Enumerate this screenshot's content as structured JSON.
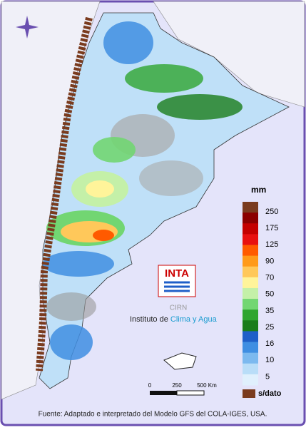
{
  "legend": {
    "title": "mm",
    "labels": [
      "250",
      "175",
      "125",
      "90",
      "70",
      "50",
      "35",
      "25",
      "16",
      "10",
      "5",
      "s/dato"
    ],
    "colors": [
      "#7a3b1e",
      "#8b0000",
      "#c40000",
      "#e81010",
      "#ff5a00",
      "#ff9a1a",
      "#ffc85a",
      "#fff49a",
      "#c4f0a8",
      "#72d672",
      "#2fa52f",
      "#1a7d1a",
      "#1f5fc8",
      "#3f8ee2",
      "#7cb9ef",
      "#b9ddf8",
      "#e0f0fd"
    ]
  },
  "scale": {
    "labels": [
      "0",
      "250",
      "500 Km"
    ]
  },
  "logo": {
    "brand": "INTA",
    "center": "CIRN",
    "name_part1": "Instituto de ",
    "name_part2": "Clima y Agua"
  },
  "footer": "Fuente: Adaptado e interpretado del Modelo GFS del COLA-IGES, USA."
}
